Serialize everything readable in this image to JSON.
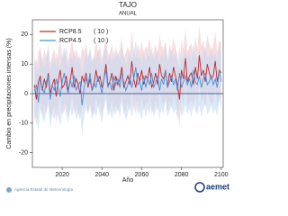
{
  "chart_data": {
    "type": "line",
    "title": "TAJO",
    "subtitle": "ANUAL",
    "x_label": "Año",
    "y_label": "Cambio en precipitaciones intensas (%)",
    "footer": "Agencia Estatal de Meteorología",
    "logo": "aemet",
    "xlim": [
      2005,
      2101
    ],
    "xticks": [
      2020,
      2040,
      2060,
      2080,
      2100
    ],
    "ylim": [
      -25,
      25
    ],
    "yticks": [
      -20,
      -10,
      0,
      10,
      20
    ],
    "x": [
      2006,
      2007,
      2008,
      2009,
      2010,
      2011,
      2012,
      2013,
      2014,
      2015,
      2016,
      2017,
      2018,
      2019,
      2020,
      2021,
      2022,
      2023,
      2024,
      2025,
      2026,
      2027,
      2028,
      2029,
      2030,
      2031,
      2032,
      2033,
      2034,
      2035,
      2036,
      2037,
      2038,
      2039,
      2040,
      2041,
      2042,
      2043,
      2044,
      2045,
      2046,
      2047,
      2048,
      2049,
      2050,
      2051,
      2052,
      2053,
      2054,
      2055,
      2056,
      2057,
      2058,
      2059,
      2060,
      2061,
      2062,
      2063,
      2064,
      2065,
      2066,
      2067,
      2068,
      2069,
      2070,
      2071,
      2072,
      2073,
      2074,
      2075,
      2076,
      2077,
      2078,
      2079,
      2080,
      2081,
      2082,
      2083,
      2084,
      2085,
      2086,
      2087,
      2088,
      2089,
      2090,
      2091,
      2092,
      2093,
      2094,
      2095,
      2096,
      2097,
      2098,
      2099,
      2100
    ],
    "series": [
      {
        "name": "RCP8.5",
        "count_label": "( 10 )",
        "color": "#c0282d",
        "band_color": "#f2c4cc",
        "values": [
          3,
          -2,
          4,
          6,
          1,
          5,
          2,
          7,
          0,
          3,
          5,
          -1,
          4,
          8,
          2,
          3,
          6,
          1,
          4,
          9,
          2,
          5,
          3,
          0,
          6,
          4,
          7,
          2,
          5,
          1,
          3,
          8,
          4,
          6,
          2,
          5,
          10,
          3,
          4,
          7,
          1,
          6,
          3,
          5,
          9,
          2,
          4,
          6,
          3,
          11,
          5,
          2,
          7,
          4,
          8,
          3,
          6,
          5,
          9,
          2,
          4,
          7,
          3,
          10,
          6,
          5,
          8,
          2,
          7,
          4,
          9,
          6,
          3,
          -2,
          8,
          5,
          12,
          4,
          6,
          7,
          3,
          9,
          5,
          13,
          6,
          8,
          4,
          10,
          7,
          5,
          6,
          11,
          4,
          8,
          7
        ],
        "upper": [
          13,
          8,
          14,
          16,
          11,
          15,
          12,
          17,
          10,
          13,
          15,
          9,
          14,
          18,
          12,
          13,
          16,
          11,
          14,
          19,
          12,
          15,
          13,
          10,
          16,
          14,
          17,
          12,
          15,
          11,
          13,
          18,
          14,
          16,
          12,
          15,
          20,
          13,
          14,
          17,
          11,
          16,
          13,
          15,
          19,
          12,
          14,
          16,
          13,
          21,
          15,
          12,
          17,
          14,
          18,
          13,
          16,
          15,
          19,
          12,
          14,
          17,
          13,
          20,
          16,
          15,
          18,
          12,
          17,
          14,
          19,
          16,
          13,
          8,
          18,
          15,
          22,
          14,
          16,
          17,
          13,
          19,
          15,
          23,
          16,
          18,
          14,
          20,
          17,
          15,
          16,
          21,
          14,
          18,
          17
        ],
        "lower": [
          -6,
          -11,
          -5,
          -3,
          -8,
          -4,
          -7,
          -2,
          -9,
          -6,
          -4,
          -10,
          -5,
          -1,
          -7,
          -6,
          -3,
          -8,
          -5,
          0,
          -7,
          -4,
          -6,
          -9,
          -3,
          -5,
          -2,
          -7,
          -4,
          -8,
          -6,
          -1,
          -5,
          -3,
          -7,
          -4,
          1,
          -6,
          -5,
          -2,
          -8,
          -3,
          -6,
          -4,
          0,
          -7,
          -5,
          -3,
          -6,
          2,
          -4,
          -7,
          -2,
          -5,
          -1,
          -6,
          -3,
          -4,
          0,
          -7,
          -5,
          -2,
          -6,
          1,
          -3,
          -4,
          -1,
          -7,
          -2,
          -5,
          0,
          -3,
          -6,
          -11,
          -1,
          -4,
          3,
          -5,
          -3,
          -2,
          -6,
          0,
          -4,
          4,
          -3,
          -1,
          -5,
          1,
          -2,
          -4,
          -3,
          2,
          -5,
          -1,
          -2
        ]
      },
      {
        "name": "RCP4.5",
        "count_label": "( 10 )",
        "color": "#4a90d9",
        "band_color": "#c4dbf2",
        "values": [
          1,
          3,
          -3,
          5,
          2,
          0,
          4,
          6,
          -2,
          3,
          1,
          5,
          2,
          -1,
          4,
          7,
          3,
          0,
          5,
          2,
          6,
          1,
          3,
          4,
          -4,
          2,
          5,
          3,
          7,
          1,
          4,
          2,
          6,
          3,
          0,
          5,
          8,
          2,
          4,
          1,
          6,
          3,
          5,
          2,
          7,
          4,
          1,
          3,
          6,
          2,
          5,
          9,
          3,
          4,
          1,
          6,
          2,
          5,
          3,
          7,
          2,
          4,
          6,
          1,
          5,
          3,
          8,
          2,
          4,
          6,
          3,
          5,
          1,
          7,
          2,
          4,
          6,
          3,
          5,
          2,
          8,
          4,
          3,
          6,
          2,
          5,
          7,
          3,
          4,
          6,
          3,
          5,
          2,
          8,
          4
        ],
        "upper": [
          10,
          12,
          6,
          14,
          11,
          9,
          13,
          15,
          7,
          12,
          10,
          14,
          11,
          8,
          13,
          16,
          12,
          9,
          14,
          11,
          15,
          10,
          12,
          13,
          5,
          11,
          14,
          12,
          16,
          10,
          13,
          11,
          15,
          12,
          9,
          14,
          17,
          11,
          13,
          10,
          15,
          12,
          14,
          11,
          16,
          13,
          10,
          12,
          15,
          11,
          14,
          18,
          12,
          13,
          10,
          15,
          11,
          14,
          12,
          16,
          11,
          13,
          15,
          10,
          14,
          12,
          17,
          11,
          13,
          15,
          12,
          14,
          10,
          16,
          11,
          13,
          15,
          12,
          14,
          11,
          17,
          13,
          12,
          15,
          11,
          14,
          16,
          12,
          13,
          15,
          12,
          14,
          11,
          17,
          13
        ],
        "lower": [
          -9,
          -7,
          -13,
          -5,
          -8,
          -10,
          -6,
          -4,
          -12,
          -7,
          -9,
          -5,
          -8,
          -11,
          -6,
          -3,
          -7,
          -10,
          -5,
          -8,
          -4,
          -9,
          -7,
          -6,
          -14,
          -8,
          -5,
          -7,
          -3,
          -9,
          -6,
          -8,
          -4,
          -7,
          -10,
          -5,
          -2,
          -8,
          -6,
          -9,
          -4,
          -7,
          -5,
          -8,
          -3,
          -6,
          -9,
          -7,
          -4,
          -8,
          -5,
          -1,
          -7,
          -6,
          -9,
          -4,
          -8,
          -5,
          -7,
          -3,
          -8,
          -6,
          -4,
          -9,
          -5,
          -7,
          -2,
          -8,
          -6,
          -4,
          -7,
          -5,
          -9,
          -3,
          -8,
          -6,
          -4,
          -7,
          -5,
          -8,
          -2,
          -6,
          -7,
          -4,
          -8,
          -5,
          -3,
          -7,
          -6,
          -4,
          -7,
          -5,
          -8,
          -2,
          -6
        ]
      }
    ]
  }
}
